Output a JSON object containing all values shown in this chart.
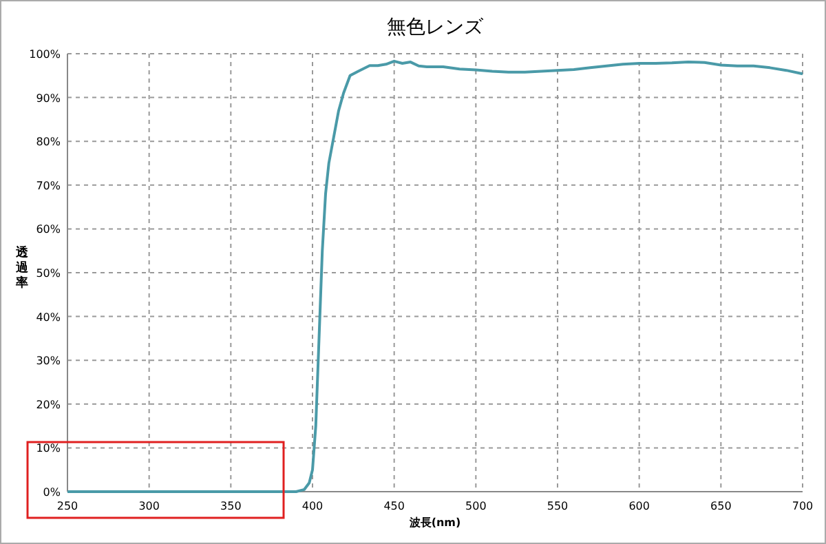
{
  "chart_data": {
    "type": "line",
    "title": "無色レンズ",
    "xlabel": "波長(nm)",
    "ylabel": "透過率",
    "xlim": [
      250,
      700
    ],
    "xticks": [
      250,
      300,
      350,
      400,
      450,
      500,
      550,
      600,
      650,
      700
    ],
    "ylim": [
      0,
      100
    ],
    "yticks": [
      {
        "value": 0,
        "label": "0%"
      },
      {
        "value": 10,
        "label": "10%"
      },
      {
        "value": 20,
        "label": "20%"
      },
      {
        "value": 30,
        "label": "30%"
      },
      {
        "value": 40,
        "label": "40%"
      },
      {
        "value": 50,
        "label": "50%"
      },
      {
        "value": 60,
        "label": "60%"
      },
      {
        "value": 70,
        "label": "70%"
      },
      {
        "value": 80,
        "label": "80%"
      },
      {
        "value": 90,
        "label": "90%"
      },
      {
        "value": 100,
        "label": "100%"
      }
    ],
    "grid": true,
    "line_style": "solid",
    "marker": "none",
    "series": [
      {
        "color": "#4a9aa8",
        "x": [
          250,
          300,
          350,
          390,
          395,
          398,
          400,
          402,
          404,
          406,
          408,
          410,
          413,
          416,
          419,
          423,
          428,
          435,
          440,
          445,
          450,
          455,
          460,
          465,
          470,
          480,
          490,
          500,
          510,
          520,
          530,
          540,
          550,
          560,
          570,
          580,
          590,
          600,
          610,
          620,
          630,
          640,
          650,
          660,
          670,
          680,
          690,
          700
        ],
        "values": [
          0,
          0,
          0,
          0,
          0.5,
          2,
          5,
          15,
          35,
          55,
          68,
          75,
          81,
          87,
          91,
          95,
          96,
          97.3,
          97.3,
          97.6,
          98.3,
          97.8,
          98.1,
          97.2,
          97,
          97,
          96.5,
          96.3,
          96,
          95.8,
          95.8,
          96,
          96.2,
          96.4,
          96.8,
          97.2,
          97.6,
          97.8,
          97.8,
          97.9,
          98.1,
          98,
          97.4,
          97.2,
          97.2,
          96.8,
          96.2,
          95.4
        ]
      }
    ]
  }
}
